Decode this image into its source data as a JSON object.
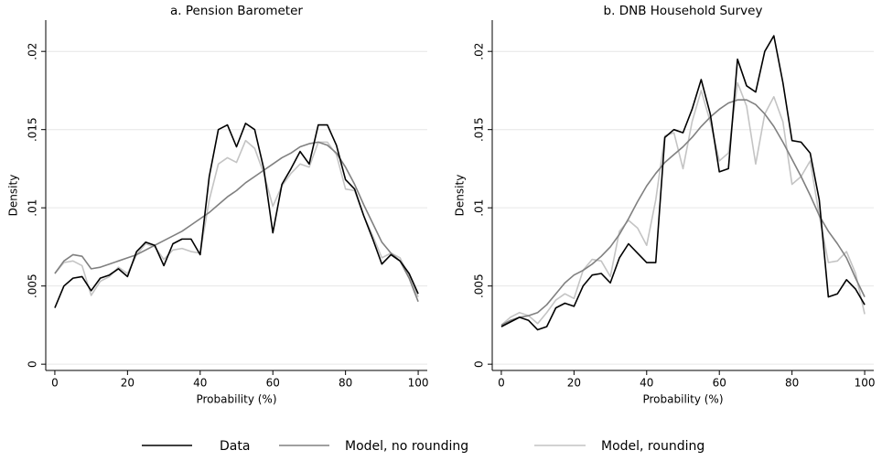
{
  "chart_data": [
    {
      "type": "line",
      "title": "a. Pension Barometer",
      "xlabel": "Probability (%)",
      "ylabel": "Density",
      "x": [
        0,
        2.5,
        5,
        7.5,
        10,
        12.5,
        15,
        17.5,
        20,
        22.5,
        25,
        27.5,
        30,
        32.5,
        35,
        37.5,
        40,
        42.5,
        45,
        47.5,
        50,
        52.5,
        55,
        57.5,
        60,
        62.5,
        65,
        67.5,
        70,
        72.5,
        75,
        77.5,
        80,
        82.5,
        85,
        87.5,
        90,
        92.5,
        95,
        97.5,
        100
      ],
      "series": [
        {
          "name": "Data",
          "color": "#000000",
          "values": [
            0.0036,
            0.005,
            0.0055,
            0.0056,
            0.0047,
            0.0055,
            0.0057,
            0.0061,
            0.0056,
            0.0072,
            0.0078,
            0.0076,
            0.0063,
            0.0077,
            0.008,
            0.008,
            0.007,
            0.012,
            0.015,
            0.0153,
            0.0139,
            0.0154,
            0.015,
            0.0125,
            0.0084,
            0.0115,
            0.0125,
            0.0136,
            0.0128,
            0.0153,
            0.0153,
            0.014,
            0.0118,
            0.0112,
            0.0095,
            0.008,
            0.0064,
            0.007,
            0.0066,
            0.0058,
            0.0045
          ]
        },
        {
          "name": "Model, no rounding",
          "color": "#808080",
          "values": [
            0.0058,
            0.0066,
            0.007,
            0.0069,
            0.0061,
            0.0062,
            0.0064,
            0.0066,
            0.0068,
            0.007,
            0.0073,
            0.0076,
            0.0079,
            0.0082,
            0.0085,
            0.0089,
            0.0093,
            0.0097,
            0.0102,
            0.0107,
            0.0111,
            0.0116,
            0.012,
            0.0124,
            0.0128,
            0.0132,
            0.0135,
            0.0139,
            0.0141,
            0.0142,
            0.014,
            0.0135,
            0.0126,
            0.0115,
            0.0102,
            0.009,
            0.0078,
            0.0071,
            0.0066,
            0.0055,
            0.004
          ]
        },
        {
          "name": "Model, rounding",
          "color": "#c4c4c4",
          "values": [
            0.0058,
            0.0065,
            0.0066,
            0.0063,
            0.0044,
            0.0053,
            0.0056,
            0.0062,
            0.0058,
            0.007,
            0.0077,
            0.0075,
            0.0067,
            0.0073,
            0.0074,
            0.0072,
            0.0071,
            0.0105,
            0.0128,
            0.0132,
            0.0129,
            0.0143,
            0.0138,
            0.0122,
            0.0101,
            0.0114,
            0.0122,
            0.0128,
            0.0126,
            0.0142,
            0.0142,
            0.0134,
            0.0112,
            0.0111,
            0.0095,
            0.0082,
            0.0068,
            0.0071,
            0.0068,
            0.0056,
            0.0043
          ]
        }
      ],
      "xlim": [
        -2.5,
        102.5
      ],
      "xticks": [
        0,
        20,
        40,
        60,
        80,
        100
      ],
      "ylim": [
        -0.0004,
        0.022
      ],
      "yticks": [
        0,
        {
          "value": 0.005,
          "label": ".005"
        },
        {
          "value": 0.01,
          "label": ".01"
        },
        {
          "value": 0.015,
          "label": ".015"
        },
        {
          "value": 0.02,
          "label": ".02"
        }
      ],
      "grid": true
    },
    {
      "type": "line",
      "title": "b. DNB Household Survey",
      "xlabel": "Probability (%)",
      "ylabel": "Density",
      "x": [
        0,
        2.5,
        5,
        7.5,
        10,
        12.5,
        15,
        17.5,
        20,
        22.5,
        25,
        27.5,
        30,
        32.5,
        35,
        37.5,
        40,
        42.5,
        45,
        47.5,
        50,
        52.5,
        55,
        57.5,
        60,
        62.5,
        65,
        67.5,
        70,
        72.5,
        75,
        77.5,
        80,
        82.5,
        85,
        87.5,
        90,
        92.5,
        95,
        97.5,
        100
      ],
      "series": [
        {
          "color": "#000000",
          "values": [
            0.0024,
            0.0027,
            0.003,
            0.0028,
            0.0022,
            0.0024,
            0.0036,
            0.0039,
            0.0037,
            0.005,
            0.0057,
            0.0058,
            0.0052,
            0.0068,
            0.0077,
            0.0071,
            0.0065,
            0.0065,
            0.0145,
            0.015,
            0.0148,
            0.0163,
            0.0182,
            0.016,
            0.0123,
            0.0125,
            0.0195,
            0.0178,
            0.0174,
            0.02,
            0.021,
            0.018,
            0.0143,
            0.0142,
            0.0135,
            0.0105,
            0.0043,
            0.0045,
            0.0054,
            0.0048,
            0.0038
          ]
        },
        {
          "color": "#808080",
          "values": [
            0.0025,
            0.0028,
            0.003,
            0.0031,
            0.0033,
            0.0038,
            0.0045,
            0.0052,
            0.0057,
            0.006,
            0.0064,
            0.0069,
            0.0075,
            0.0083,
            0.0093,
            0.0104,
            0.0114,
            0.0122,
            0.0129,
            0.0134,
            0.0139,
            0.0145,
            0.0152,
            0.0158,
            0.0163,
            0.0167,
            0.0169,
            0.0169,
            0.0166,
            0.016,
            0.0152,
            0.0142,
            0.0131,
            0.012,
            0.0108,
            0.0095,
            0.0085,
            0.0077,
            0.0068,
            0.0055,
            0.0043
          ]
        },
        {
          "color": "#c4c4c4",
          "values": [
            0.0025,
            0.003,
            0.0033,
            0.0031,
            0.0026,
            0.0033,
            0.0041,
            0.0045,
            0.0042,
            0.006,
            0.0067,
            0.0066,
            0.0056,
            0.0085,
            0.0092,
            0.0087,
            0.0076,
            0.0105,
            0.0146,
            0.0148,
            0.0125,
            0.0155,
            0.0175,
            0.0155,
            0.013,
            0.0135,
            0.018,
            0.0165,
            0.0128,
            0.016,
            0.0171,
            0.0155,
            0.0115,
            0.012,
            0.013,
            0.0095,
            0.0065,
            0.0066,
            0.0072,
            0.0058,
            0.0032
          ]
        }
      ],
      "xlim": [
        -2.5,
        102.5
      ],
      "xticks": [
        0,
        20,
        40,
        60,
        80,
        100
      ],
      "ylim": [
        -0.0004,
        0.022
      ],
      "yticks": [
        0,
        {
          "value": 0.005,
          "label": ".005"
        },
        {
          "value": 0.01,
          "label": ".01"
        },
        {
          "value": 0.015,
          "label": ".015"
        },
        {
          "value": 0.02,
          "label": ".02"
        }
      ],
      "grid": true
    }
  ]
}
